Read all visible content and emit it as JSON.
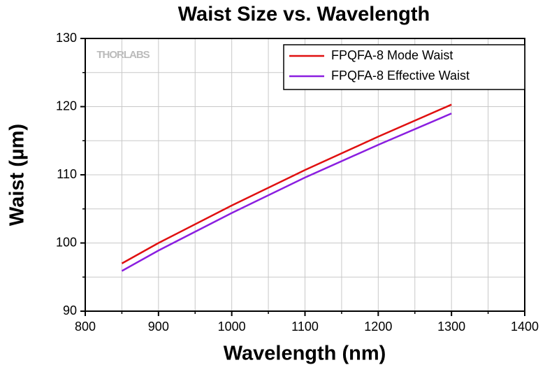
{
  "chart_data": {
    "type": "line",
    "title": "Waist Size vs. Wavelength",
    "watermark": "THORLABS",
    "x_label": "Wavelength (nm)",
    "y_label": "Waist (µm)",
    "x": [
      850,
      900,
      1000,
      1100,
      1200,
      1300
    ],
    "series": [
      {
        "name": "FPQFA-8 Mode Waist",
        "color": "#e01010",
        "values": [
          97.0,
          100.0,
          105.5,
          110.7,
          115.6,
          120.3
        ]
      },
      {
        "name": "FPQFA-8 Effective Waist",
        "color": "#8a1ee0",
        "values": [
          95.9,
          98.9,
          104.4,
          109.6,
          114.4,
          119.0
        ]
      }
    ],
    "xlim": [
      800,
      1400
    ],
    "xticks": [
      800,
      900,
      1000,
      1100,
      1200,
      1300,
      1400
    ],
    "x_minor_ticks": [
      850,
      950,
      1050,
      1150,
      1250,
      1350
    ],
    "ylim": [
      90,
      130
    ],
    "yticks": [
      90,
      100,
      110,
      120,
      130
    ],
    "y_minor_ticks": [
      95,
      105,
      115,
      125
    ],
    "grid": true,
    "legend": "top-right"
  }
}
